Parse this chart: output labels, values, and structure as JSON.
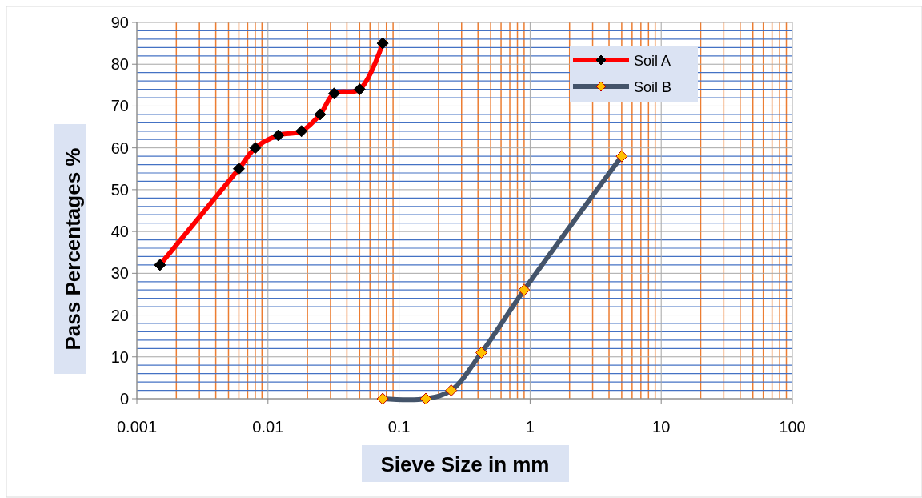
{
  "chart_data": {
    "type": "line",
    "xlabel": "Sieve Size in mm",
    "ylabel": "Pass Percentages %",
    "log": "x",
    "xlim": [
      0.001,
      100
    ],
    "xticks": [
      0.001,
      {
        "value": 0.002,
        "label": null
      },
      {
        "value": 0.003,
        "label": null
      },
      {
        "value": 0.004,
        "label": null
      },
      {
        "value": 0.005,
        "label": null
      },
      {
        "value": 0.006,
        "label": null
      },
      {
        "value": 0.007,
        "label": null
      },
      {
        "value": 0.008,
        "label": null
      },
      {
        "value": 0.009,
        "label": null
      },
      0.01,
      {
        "value": 0.02,
        "label": null
      },
      {
        "value": 0.03,
        "label": null
      },
      {
        "value": 0.04,
        "label": null
      },
      {
        "value": 0.05,
        "label": null
      },
      {
        "value": 0.06,
        "label": null
      },
      {
        "value": 0.07,
        "label": null
      },
      {
        "value": 0.08,
        "label": null
      },
      {
        "value": 0.09,
        "label": null
      },
      0.1,
      {
        "value": 0.2,
        "label": null
      },
      {
        "value": 0.3,
        "label": null
      },
      {
        "value": 0.4,
        "label": null
      },
      {
        "value": 0.5,
        "label": null
      },
      {
        "value": 0.6,
        "label": null
      },
      {
        "value": 0.7,
        "label": null
      },
      {
        "value": 0.8,
        "label": null
      },
      {
        "value": 0.9,
        "label": null
      },
      1,
      {
        "value": 2,
        "label": null
      },
      {
        "value": 3,
        "label": null
      },
      {
        "value": 4,
        "label": null
      },
      {
        "value": 5,
        "label": null
      },
      {
        "value": 6,
        "label": null
      },
      {
        "value": 7,
        "label": null
      },
      {
        "value": 8,
        "label": null
      },
      {
        "value": 9,
        "label": null
      },
      10,
      {
        "value": 20,
        "label": null
      },
      {
        "value": 30,
        "label": null
      },
      {
        "value": 40,
        "label": null
      },
      {
        "value": 50,
        "label": null
      },
      {
        "value": 60,
        "label": null
      },
      {
        "value": 70,
        "label": null
      },
      {
        "value": 80,
        "label": null
      },
      {
        "value": 90,
        "label": null
      },
      100
    ],
    "ylim": [
      0,
      90
    ],
    "yticks": [
      0,
      {
        "value": 2,
        "label": null
      },
      {
        "value": 4,
        "label": null
      },
      {
        "value": 6,
        "label": null
      },
      {
        "value": 8,
        "label": null
      },
      10,
      {
        "value": 12,
        "label": null
      },
      {
        "value": 14,
        "label": null
      },
      {
        "value": 16,
        "label": null
      },
      {
        "value": 18,
        "label": null
      },
      20,
      {
        "value": 22,
        "label": null
      },
      {
        "value": 24,
        "label": null
      },
      {
        "value": 26,
        "label": null
      },
      {
        "value": 28,
        "label": null
      },
      30,
      {
        "value": 32,
        "label": null
      },
      {
        "value": 34,
        "label": null
      },
      {
        "value": 36,
        "label": null
      },
      {
        "value": 38,
        "label": null
      },
      40,
      {
        "value": 42,
        "label": null
      },
      {
        "value": 44,
        "label": null
      },
      {
        "value": 46,
        "label": null
      },
      {
        "value": 48,
        "label": null
      },
      50,
      {
        "value": 52,
        "label": null
      },
      {
        "value": 54,
        "label": null
      },
      {
        "value": 56,
        "label": null
      },
      {
        "value": 58,
        "label": null
      },
      60,
      {
        "value": 62,
        "label": null
      },
      {
        "value": 64,
        "label": null
      },
      {
        "value": 66,
        "label": null
      },
      {
        "value": 68,
        "label": null
      },
      70,
      {
        "value": 72,
        "label": null
      },
      {
        "value": 74,
        "label": null
      },
      {
        "value": 76,
        "label": null
      },
      {
        "value": 78,
        "label": null
      },
      80,
      {
        "value": 82,
        "label": null
      },
      {
        "value": 84,
        "label": null
      },
      {
        "value": 86,
        "label": null
      },
      {
        "value": 88,
        "label": null
      },
      90
    ],
    "grid": true,
    "legend": "top right",
    "marker": "diamond",
    "series": [
      {
        "name": "Soil A",
        "color": "#ff0000",
        "x": [
          0.0015,
          0.006,
          0.008,
          0.012,
          0.018,
          0.025,
          0.032,
          0.05,
          0.075
        ],
        "values": [
          32,
          55,
          60,
          63,
          64,
          68,
          73,
          74,
          85
        ]
      },
      {
        "name": "Soil B",
        "color": "#44546a",
        "x": [
          0.075,
          0.16,
          0.25,
          0.425,
          0.9,
          5
        ],
        "values": [
          0,
          0,
          2,
          11,
          26,
          58
        ]
      }
    ]
  }
}
